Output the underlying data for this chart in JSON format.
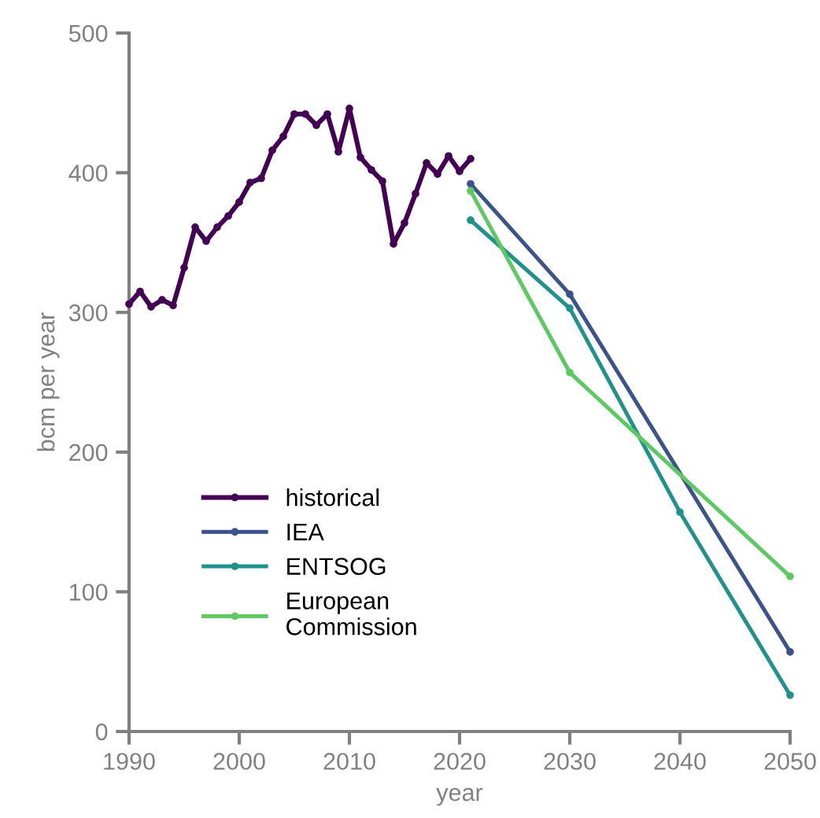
{
  "chart_data": {
    "type": "line",
    "xlabel": "year",
    "ylabel": "bcm per year",
    "xlim": [
      1990,
      2050
    ],
    "xticks": [
      1990,
      2000,
      2010,
      2020,
      2030,
      2040,
      2050
    ],
    "ylim": [
      0,
      500
    ],
    "yticks": [
      0,
      100,
      200,
      300,
      400,
      500
    ],
    "grid": false,
    "legend": "bottom left",
    "marker": "circle",
    "line_style": "solid",
    "series": [
      {
        "name": "historical",
        "color": "#440154",
        "x": [
          1990,
          1991,
          1992,
          1993,
          1994,
          1995,
          1996,
          1997,
          1998,
          1999,
          2000,
          2001,
          2002,
          2003,
          2004,
          2005,
          2006,
          2007,
          2008,
          2009,
          2010,
          2011,
          2012,
          2013,
          2014,
          2015,
          2016,
          2017,
          2018,
          2019,
          2020,
          2021
        ],
        "values": [
          306,
          315,
          304,
          309,
          305,
          332,
          361,
          351,
          361,
          369,
          379,
          393,
          396,
          416,
          426,
          442,
          442,
          434,
          442,
          415,
          446,
          411,
          402,
          394,
          349,
          364,
          385,
          407,
          399,
          412,
          401,
          410
        ]
      },
      {
        "name": "IEA",
        "color": "#3b528b",
        "x": [
          2021,
          2030,
          2050
        ],
        "values": [
          392,
          313,
          57
        ]
      },
      {
        "name": "ENTSOG",
        "color": "#21918c",
        "x": [
          2021,
          2030,
          2040,
          2050
        ],
        "values": [
          366,
          303,
          157,
          26
        ]
      },
      {
        "name": "European\nCommission",
        "color": "#5ec962",
        "x": [
          2021,
          2030,
          2050
        ],
        "values": [
          387,
          257,
          111
        ]
      }
    ]
  }
}
